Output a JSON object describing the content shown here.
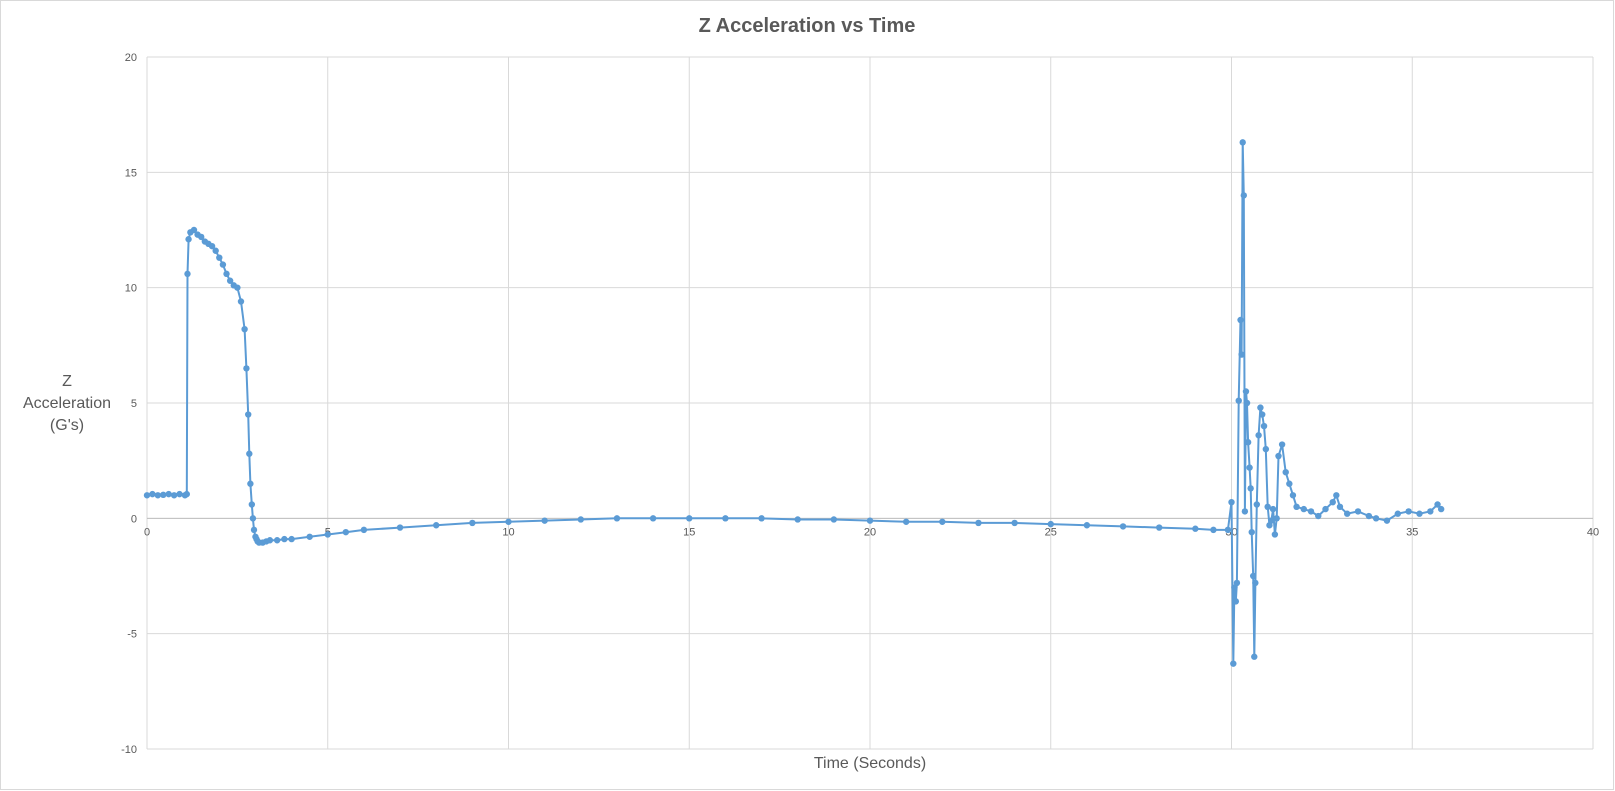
{
  "chart_data": {
    "type": "scatter",
    "title": "Z Acceleration vs Time",
    "xlabel": "Time (Seconds)",
    "ylabel_lines": [
      "Z",
      "Acceleration",
      "(G's)"
    ],
    "xlim": [
      0,
      40
    ],
    "ylim": [
      -10,
      20
    ],
    "x_ticks": [
      0,
      5,
      10,
      15,
      20,
      25,
      30,
      35,
      40
    ],
    "y_ticks": [
      -10,
      -5,
      0,
      5,
      10,
      15,
      20
    ],
    "grid": true,
    "legend": "none",
    "series_color": "#5b9bd5",
    "markers": true,
    "series": [
      {
        "x": [
          0,
          0.15,
          0.3,
          0.45,
          0.6,
          0.75,
          0.9,
          1.05,
          1.1,
          1.12,
          1.15,
          1.2,
          1.3,
          1.4,
          1.5,
          1.6,
          1.7,
          1.8,
          1.9,
          2.0,
          2.1,
          2.2,
          2.3,
          2.4,
          2.5,
          2.6,
          2.7,
          2.75,
          2.8,
          2.83,
          2.86,
          2.9,
          2.93,
          2.96,
          3.0,
          3.03,
          3.06,
          3.1,
          3.2,
          3.3,
          3.4,
          3.6,
          3.8,
          4.0,
          4.5,
          5.0,
          5.5,
          6.0,
          7.0,
          8.0,
          9.0,
          10.0,
          11.0,
          12.0,
          13.0,
          14.0,
          15.0,
          16.0,
          17.0,
          18.0,
          19.0,
          20.0,
          21.0,
          22.0,
          23.0,
          24.0,
          25.0,
          26.0,
          27.0,
          28.0,
          29.0,
          29.5,
          29.9,
          30.0,
          30.05,
          30.08,
          30.12,
          30.15,
          30.2,
          30.25,
          30.28,
          30.31,
          30.34,
          30.37,
          30.4,
          30.43,
          30.46,
          30.5,
          30.53,
          30.56,
          30.6,
          30.63,
          30.66,
          30.7,
          30.75,
          30.8,
          30.85,
          30.9,
          30.95,
          31.0,
          31.05,
          31.1,
          31.15,
          31.2,
          31.25,
          31.3,
          31.4,
          31.5,
          31.6,
          31.7,
          31.8,
          32.0,
          32.2,
          32.4,
          32.6,
          32.8,
          32.9,
          33.0,
          33.2,
          33.5,
          33.8,
          34.0,
          34.3,
          34.6,
          34.9,
          35.2,
          35.5,
          35.7,
          35.8
        ],
        "y": [
          1.0,
          1.05,
          1.0,
          1.02,
          1.05,
          1.0,
          1.05,
          1.0,
          1.05,
          10.6,
          12.1,
          12.4,
          12.5,
          12.3,
          12.2,
          12.0,
          11.9,
          11.8,
          11.6,
          11.3,
          11.0,
          10.6,
          10.3,
          10.1,
          10.0,
          9.4,
          8.2,
          6.5,
          4.5,
          2.8,
          1.5,
          0.6,
          0.0,
          -0.5,
          -0.8,
          -0.9,
          -1.0,
          -1.05,
          -1.05,
          -1.0,
          -0.95,
          -0.95,
          -0.9,
          -0.9,
          -0.8,
          -0.7,
          -0.6,
          -0.5,
          -0.4,
          -0.3,
          -0.2,
          -0.15,
          -0.1,
          -0.05,
          0.0,
          0.0,
          0.0,
          0.0,
          0.0,
          -0.05,
          -0.05,
          -0.1,
          -0.15,
          -0.15,
          -0.2,
          -0.2,
          -0.25,
          -0.3,
          -0.35,
          -0.4,
          -0.45,
          -0.5,
          -0.5,
          0.7,
          -6.3,
          -3.0,
          -3.6,
          -2.8,
          5.1,
          8.6,
          7.1,
          16.3,
          14.0,
          0.3,
          5.5,
          5.0,
          3.3,
          2.2,
          1.3,
          -0.6,
          -2.5,
          -6.0,
          -2.8,
          0.6,
          3.6,
          4.8,
          4.5,
          4.0,
          3.0,
          0.5,
          -0.3,
          -0.1,
          0.4,
          -0.7,
          0.0,
          2.7,
          3.2,
          2.0,
          1.5,
          1.0,
          0.5,
          0.4,
          0.3,
          0.1,
          0.4,
          0.7,
          1.0,
          0.5,
          0.2,
          0.3,
          0.1,
          0.0,
          -0.1,
          0.2,
          0.3,
          0.2,
          0.3,
          0.6,
          0.4
        ]
      }
    ]
  }
}
